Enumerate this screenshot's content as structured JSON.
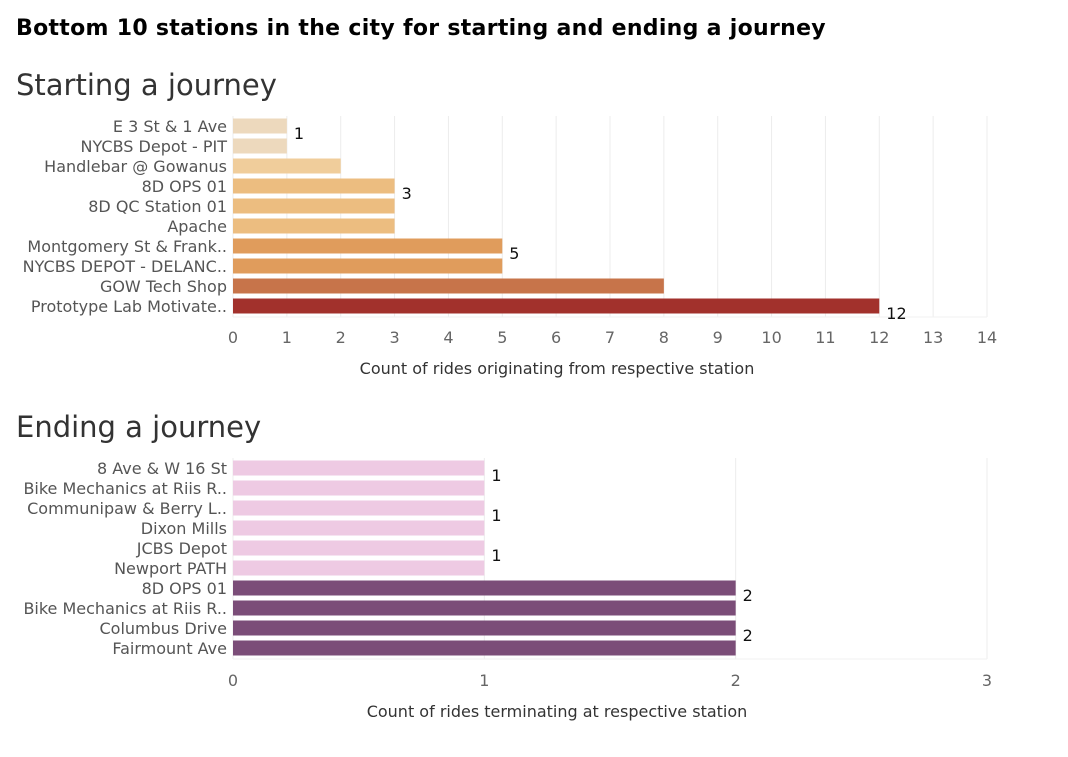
{
  "title": "Bottom 10 stations in the city for starting and ending a journey",
  "chart_data": [
    {
      "type": "bar",
      "orientation": "horizontal",
      "title": "Starting a journey",
      "categories": [
        "E 3 St & 1 Ave",
        "NYCBS Depot - PIT",
        "Handlebar @ Gowanus",
        "8D OPS 01",
        "8D QC Station 01",
        "Apache",
        "Montgomery St & Frank..",
        "NYCBS DEPOT - DELANC..",
        "GOW Tech Shop",
        "Prototype Lab Motivate.."
      ],
      "values": [
        1,
        1,
        2,
        3,
        3,
        3,
        5,
        5,
        8,
        12
      ],
      "data_labels": [
        "1",
        "",
        "",
        "3",
        "",
        "",
        "5",
        "",
        "",
        "12"
      ],
      "colors": [
        "#edd9bd",
        "#edd9bd",
        "#f0cd9b",
        "#ecbd80",
        "#ecbd80",
        "#ecbd80",
        "#e09c5c",
        "#e09c5c",
        "#c7744a",
        "#a2312c"
      ],
      "xlabel": "Count of rides originating from respective station",
      "xlim": [
        0,
        14
      ],
      "xticks": [
        "0",
        "1",
        "2",
        "3",
        "4",
        "5",
        "6",
        "7",
        "8",
        "9",
        "10",
        "11",
        "12",
        "13",
        "14"
      ],
      "grid": true
    },
    {
      "type": "bar",
      "orientation": "horizontal",
      "title": "Ending a journey",
      "categories": [
        "8 Ave & W 16 St",
        "Bike Mechanics at Riis R..",
        "Communipaw & Berry L..",
        "Dixon Mills",
        "JCBS Depot",
        "Newport PATH",
        "8D OPS 01",
        "Bike Mechanics at Riis R..",
        "Columbus Drive",
        "Fairmount Ave"
      ],
      "values": [
        1,
        1,
        1,
        1,
        1,
        1,
        2,
        2,
        2,
        2
      ],
      "data_labels": [
        "1",
        "",
        "1",
        "",
        "1",
        "",
        "2",
        "",
        "2",
        ""
      ],
      "colors": [
        "#eecae3",
        "#eecae3",
        "#eecae3",
        "#eecae3",
        "#eecae3",
        "#eecae3",
        "#7b4d78",
        "#7b4d78",
        "#7b4d78",
        "#7b4d78"
      ],
      "xlabel": "Count of rides terminating at respective station",
      "xlim": [
        0,
        3
      ],
      "xticks": [
        "0",
        "1",
        "2",
        "3"
      ],
      "grid": true
    }
  ]
}
